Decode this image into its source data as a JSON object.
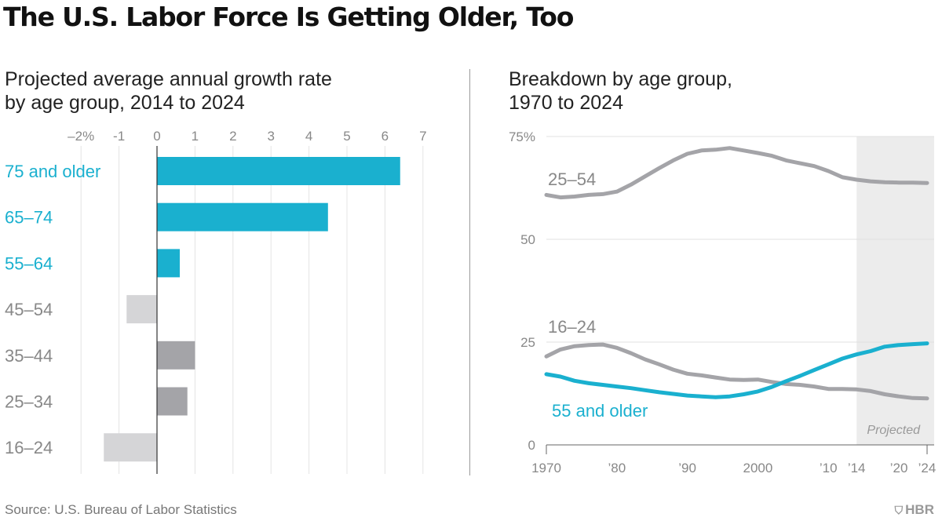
{
  "title": "The U.S. Labor Force Is Getting Older, Too",
  "source": "Source: U.S. Bureau of Labor Statistics",
  "brand": "HBR",
  "colors": {
    "highlight": "#1ab0cf",
    "gray_dark": "#a4a4a8",
    "gray_light": "#d5d5d7",
    "line_gray": "#a4a4a8",
    "projected_bg": "#ececec"
  },
  "chart_data": [
    {
      "type": "bar",
      "orientation": "horizontal",
      "title": "Projected average annual growth rate by age group, 2014 to 2024",
      "title_lines": [
        "Projected average annual growth rate",
        "by age group, 2014 to 2024"
      ],
      "categories": [
        "75 and older",
        "65–74",
        "55–64",
        "45–54",
        "35–44",
        "25–34",
        "16–24"
      ],
      "values": [
        6.4,
        4.5,
        0.6,
        -0.8,
        1.0,
        0.8,
        -1.4
      ],
      "highlighted": [
        true,
        true,
        true,
        false,
        false,
        false,
        false
      ],
      "xlim": [
        -2,
        7
      ],
      "xticks": [
        -2,
        -1,
        0,
        1,
        2,
        3,
        4,
        5,
        6,
        7
      ],
      "xtick_labels": [
        "–2%",
        "-1",
        "0",
        "1",
        "2",
        "3",
        "4",
        "5",
        "6",
        "7"
      ],
      "grid": true
    },
    {
      "type": "line",
      "title": "Breakdown by age group, 1970 to 2024",
      "title_lines": [
        "Breakdown by age group,",
        "1970 to 2024"
      ],
      "ylim": [
        0,
        75
      ],
      "yticks": [
        0,
        25,
        50,
        75
      ],
      "ytick_labels": [
        "0",
        "25",
        "50",
        "75%"
      ],
      "xlim": [
        1970,
        2024
      ],
      "xticks": [
        1970,
        1980,
        1990,
        2000,
        2010,
        2014,
        2020,
        2024
      ],
      "xtick_labels": [
        "1970",
        "’80",
        "’90",
        "2000",
        "’10",
        "’14",
        "’20",
        "’24"
      ],
      "projected_from": 2014,
      "projected_label": "Projected",
      "grid": true,
      "series": [
        {
          "name": "25–54",
          "color": "gray",
          "x": [
            1970,
            1972,
            1974,
            1976,
            1978,
            1980,
            1982,
            1984,
            1986,
            1988,
            1990,
            1992,
            1994,
            1996,
            1998,
            2000,
            2002,
            2004,
            2006,
            2008,
            2010,
            2012,
            2014,
            2016,
            2018,
            2020,
            2022,
            2024
          ],
          "values": [
            60.8,
            60.2,
            60.4,
            60.8,
            61.0,
            61.6,
            63.3,
            65.3,
            67.3,
            69.2,
            70.8,
            71.6,
            71.8,
            72.2,
            71.6,
            71.0,
            70.3,
            69.2,
            68.5,
            67.8,
            66.6,
            65.1,
            64.5,
            64.1,
            63.9,
            63.8,
            63.8,
            63.7
          ]
        },
        {
          "name": "16–24",
          "color": "gray",
          "x": [
            1970,
            1972,
            1974,
            1976,
            1978,
            1980,
            1982,
            1984,
            1986,
            1988,
            1990,
            1992,
            1994,
            1996,
            1998,
            2000,
            2002,
            2004,
            2006,
            2008,
            2010,
            2012,
            2014,
            2016,
            2018,
            2020,
            2022,
            2024
          ],
          "values": [
            21.5,
            23.2,
            24.0,
            24.3,
            24.4,
            23.6,
            22.3,
            20.8,
            19.6,
            18.3,
            17.3,
            16.9,
            16.4,
            15.9,
            15.8,
            15.9,
            15.3,
            14.8,
            14.6,
            14.2,
            13.6,
            13.6,
            13.5,
            13.1,
            12.3,
            11.8,
            11.4,
            11.3
          ]
        },
        {
          "name": "55 and older",
          "color": "highlight",
          "x": [
            1970,
            1972,
            1974,
            1976,
            1978,
            1980,
            1982,
            1984,
            1986,
            1988,
            1990,
            1992,
            1994,
            1996,
            1998,
            2000,
            2002,
            2004,
            2006,
            2008,
            2010,
            2012,
            2014,
            2016,
            2018,
            2020,
            2022,
            2024
          ],
          "values": [
            17.2,
            16.6,
            15.6,
            15.0,
            14.6,
            14.2,
            13.8,
            13.3,
            12.8,
            12.4,
            12.0,
            11.8,
            11.6,
            11.8,
            12.3,
            13.0,
            14.1,
            15.5,
            16.8,
            18.2,
            19.6,
            21.0,
            22.0,
            22.8,
            23.9,
            24.3,
            24.5,
            24.7
          ]
        }
      ],
      "series_labels": [
        "25–54",
        "16–24",
        "55 and older"
      ]
    }
  ]
}
